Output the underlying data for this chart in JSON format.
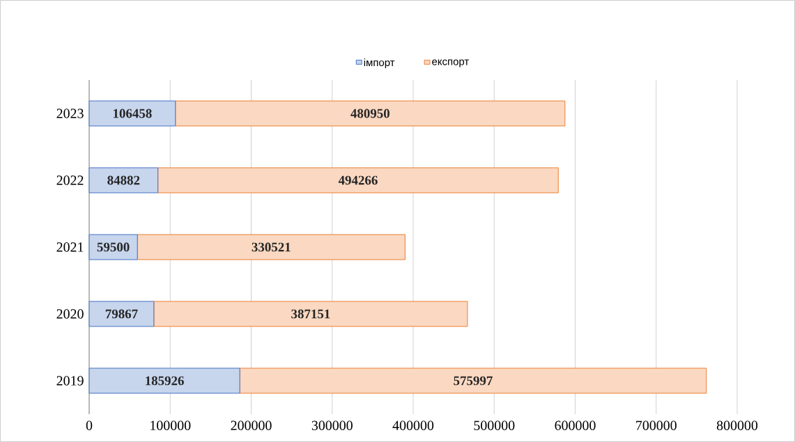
{
  "chart_data": {
    "type": "bar",
    "orientation": "horizontal",
    "stacked": true,
    "categories": [
      "2023",
      "2022",
      "2021",
      "2020",
      "2019"
    ],
    "series": [
      {
        "name": "імпорт",
        "color": "#4472c4",
        "values": [
          106458,
          84882,
          59500,
          79867,
          185926
        ]
      },
      {
        "name": "експорт",
        "color": "#ed7d31",
        "values": [
          480950,
          494266,
          330521,
          387151,
          575997
        ]
      }
    ],
    "xlim": [
      0,
      800000
    ],
    "xticks": [
      0,
      100000,
      200000,
      300000,
      400000,
      500000,
      600000,
      700000,
      800000
    ],
    "grid": "x",
    "legend": "top",
    "data_labels": true
  }
}
